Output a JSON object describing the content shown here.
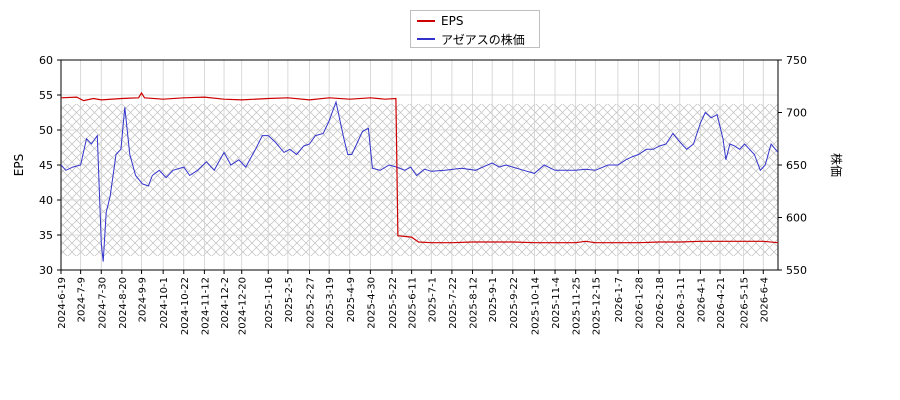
{
  "chart_data": {
    "type": "line",
    "legend_position": "top-center",
    "grid": true,
    "series": [
      {
        "name": "EPS",
        "axis": "left",
        "color": "#cc0000",
        "points": [
          [
            "2024-6-19",
            54.6
          ],
          [
            "2024-7-5",
            54.7
          ],
          [
            "2024-7-12",
            54.2
          ],
          [
            "2024-7-22",
            54.5
          ],
          [
            "2024-7-30",
            54.3
          ],
          [
            "2024-8-20",
            54.5
          ],
          [
            "2024-9-6",
            54.6
          ],
          [
            "2024-9-9",
            55.3
          ],
          [
            "2024-9-12",
            54.6
          ],
          [
            "2024-10-1",
            54.4
          ],
          [
            "2024-10-22",
            54.6
          ],
          [
            "2024-11-12",
            54.7
          ],
          [
            "2024-12-2",
            54.4
          ],
          [
            "2024-12-20",
            54.3
          ],
          [
            "2025-1-16",
            54.5
          ],
          [
            "2025-2-5",
            54.6
          ],
          [
            "2025-2-27",
            54.3
          ],
          [
            "2025-3-19",
            54.6
          ],
          [
            "2025-4-9",
            54.4
          ],
          [
            "2025-4-30",
            54.6
          ],
          [
            "2025-5-15",
            54.4
          ],
          [
            "2025-5-26",
            54.5
          ],
          [
            "2025-5-28",
            34.9
          ],
          [
            "2025-6-11",
            34.7
          ],
          [
            "2025-6-18",
            34.0
          ],
          [
            "2025-7-1",
            33.9
          ],
          [
            "2025-7-22",
            33.9
          ],
          [
            "2025-8-12",
            34.0
          ],
          [
            "2025-9-1",
            34.0
          ],
          [
            "2025-9-22",
            34.0
          ],
          [
            "2025-10-14",
            33.9
          ],
          [
            "2025-11-4",
            33.9
          ],
          [
            "2025-11-25",
            33.9
          ],
          [
            "2025-12-5",
            34.1
          ],
          [
            "2025-12-15",
            33.9
          ],
          [
            "2026-1-7",
            33.9
          ],
          [
            "2026-1-28",
            33.9
          ],
          [
            "2026-2-18",
            34.0
          ],
          [
            "2026-3-11",
            34.0
          ],
          [
            "2026-4-1",
            34.1
          ],
          [
            "2026-4-21",
            34.1
          ],
          [
            "2026-5-15",
            34.1
          ],
          [
            "2026-6-4",
            34.1
          ],
          [
            "2026-6-19",
            33.9
          ]
        ]
      },
      {
        "name": "アゼアスの株価",
        "axis": "right",
        "color": "#3333cc",
        "points": [
          [
            "2024-6-19",
            650
          ],
          [
            "2024-6-24",
            645
          ],
          [
            "2024-7-1",
            648
          ],
          [
            "2024-7-9",
            650
          ],
          [
            "2024-7-15",
            675
          ],
          [
            "2024-7-20",
            670
          ],
          [
            "2024-7-26",
            678
          ],
          [
            "2024-7-30",
            575
          ],
          [
            "2024-8-1",
            558
          ],
          [
            "2024-8-4",
            605
          ],
          [
            "2024-8-8",
            620
          ],
          [
            "2024-8-14",
            660
          ],
          [
            "2024-8-19",
            665
          ],
          [
            "2024-8-23",
            705
          ],
          [
            "2024-8-28",
            660
          ],
          [
            "2024-9-3",
            640
          ],
          [
            "2024-9-10",
            632
          ],
          [
            "2024-9-16",
            630
          ],
          [
            "2024-9-20",
            640
          ],
          [
            "2024-9-27",
            645
          ],
          [
            "2024-10-4",
            638
          ],
          [
            "2024-10-11",
            645
          ],
          [
            "2024-10-22",
            648
          ],
          [
            "2024-10-28",
            640
          ],
          [
            "2024-11-5",
            645
          ],
          [
            "2024-11-14",
            653
          ],
          [
            "2024-11-22",
            645
          ],
          [
            "2024-12-2",
            662
          ],
          [
            "2024-12-9",
            650
          ],
          [
            "2024-12-17",
            655
          ],
          [
            "2024-12-24",
            648
          ],
          [
            "2025-1-3",
            665
          ],
          [
            "2025-1-10",
            678
          ],
          [
            "2025-1-16",
            678
          ],
          [
            "2025-1-23",
            672
          ],
          [
            "2025-2-1",
            662
          ],
          [
            "2025-2-7",
            665
          ],
          [
            "2025-2-14",
            660
          ],
          [
            "2025-2-21",
            668
          ],
          [
            "2025-2-27",
            670
          ],
          [
            "2025-3-5",
            678
          ],
          [
            "2025-3-13",
            680
          ],
          [
            "2025-3-19",
            692
          ],
          [
            "2025-3-26",
            710
          ],
          [
            "2025-4-3",
            675
          ],
          [
            "2025-4-7",
            660
          ],
          [
            "2025-4-11",
            660
          ],
          [
            "2025-4-15",
            668
          ],
          [
            "2025-4-22",
            682
          ],
          [
            "2025-4-28",
            685
          ],
          [
            "2025-5-2",
            647
          ],
          [
            "2025-5-10",
            645
          ],
          [
            "2025-5-19",
            650
          ],
          [
            "2025-5-27",
            648
          ],
          [
            "2025-6-4",
            645
          ],
          [
            "2025-6-10",
            648
          ],
          [
            "2025-6-16",
            640
          ],
          [
            "2025-6-24",
            646
          ],
          [
            "2025-7-1",
            644
          ],
          [
            "2025-7-15",
            645
          ],
          [
            "2025-8-1",
            647
          ],
          [
            "2025-8-15",
            645
          ],
          [
            "2025-9-1",
            652
          ],
          [
            "2025-9-8",
            648
          ],
          [
            "2025-9-15",
            650
          ],
          [
            "2025-9-22",
            648
          ],
          [
            "2025-10-3",
            645
          ],
          [
            "2025-10-14",
            642
          ],
          [
            "2025-10-24",
            650
          ],
          [
            "2025-11-4",
            645
          ],
          [
            "2025-11-14",
            645
          ],
          [
            "2025-11-25",
            645
          ],
          [
            "2025-12-5",
            646
          ],
          [
            "2025-12-15",
            645
          ],
          [
            "2025-12-28",
            650
          ],
          [
            "2026-1-7",
            650
          ],
          [
            "2026-1-15",
            655
          ],
          [
            "2026-1-22",
            658
          ],
          [
            "2026-1-28",
            660
          ],
          [
            "2026-2-5",
            665
          ],
          [
            "2026-2-12",
            665
          ],
          [
            "2026-2-18",
            668
          ],
          [
            "2026-2-25",
            670
          ],
          [
            "2026-3-4",
            680
          ],
          [
            "2026-3-11",
            672
          ],
          [
            "2026-3-18",
            665
          ],
          [
            "2026-3-25",
            670
          ],
          [
            "2026-4-1",
            690
          ],
          [
            "2026-4-6",
            700
          ],
          [
            "2026-4-12",
            695
          ],
          [
            "2026-4-18",
            698
          ],
          [
            "2026-4-24",
            675
          ],
          [
            "2026-4-27",
            655
          ],
          [
            "2026-5-1",
            670
          ],
          [
            "2026-5-6",
            668
          ],
          [
            "2026-5-11",
            665
          ],
          [
            "2026-5-16",
            670
          ],
          [
            "2026-5-21",
            665
          ],
          [
            "2026-5-26",
            660
          ],
          [
            "2026-6-1",
            645
          ],
          [
            "2026-6-6",
            650
          ],
          [
            "2026-6-12",
            670
          ],
          [
            "2026-6-19",
            662
          ]
        ]
      }
    ],
    "x_axis": {
      "start": "2024-6-19",
      "end": "2026-6-19",
      "tick_labels": [
        "2024-6-19",
        "2024-7-9",
        "2024-7-30",
        "2024-8-20",
        "2024-9-9",
        "2024-10-1",
        "2024-10-22",
        "2024-11-12",
        "2024-12-2",
        "2024-12-20",
        "2025-1-16",
        "2025-2-5",
        "2025-2-27",
        "2025-3-19",
        "2025-4-9",
        "2025-4-30",
        "2025-5-22",
        "2025-6-11",
        "2025-7-1",
        "2025-7-22",
        "2025-8-12",
        "2025-9-1",
        "2025-9-22",
        "2025-10-14",
        "2025-11-4",
        "2025-11-25",
        "2025-12-15",
        "2026-1-7",
        "2026-1-28",
        "2026-2-18",
        "2026-3-11",
        "2026-4-1",
        "2026-4-21",
        "2026-5-15",
        "2026-6-4"
      ]
    },
    "y_left": {
      "label": "EPS",
      "min": 30,
      "max": 60,
      "ticks": [
        30,
        35,
        40,
        45,
        50,
        55,
        60
      ]
    },
    "y_right": {
      "label": "株価",
      "min": 550,
      "max": 750,
      "ticks": [
        550,
        600,
        650,
        700,
        750
      ]
    }
  }
}
